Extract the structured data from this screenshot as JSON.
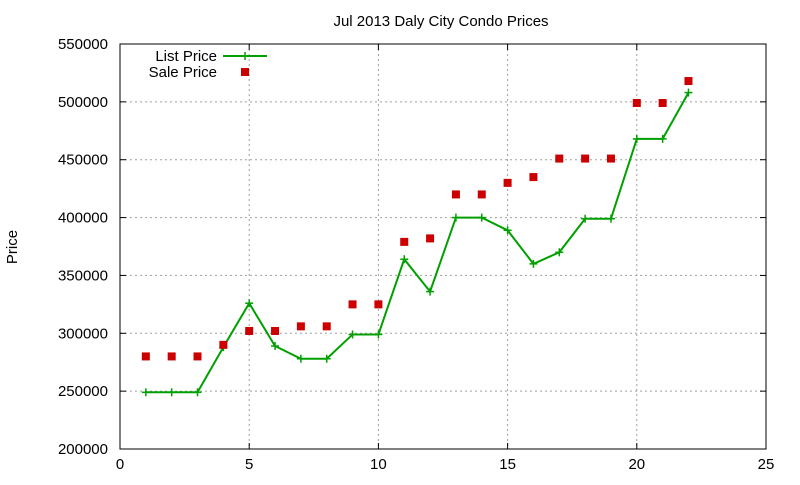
{
  "chart_data": {
    "type": "line",
    "title": "Jul 2013 Daly City Condo Prices",
    "xlabel": "",
    "ylabel": "Price",
    "xlim": [
      0,
      25
    ],
    "ylim": [
      200000,
      550000
    ],
    "x_ticks": [
      0,
      5,
      10,
      15,
      20,
      25
    ],
    "y_ticks": [
      200000,
      250000,
      300000,
      350000,
      400000,
      450000,
      500000,
      550000
    ],
    "grid": true,
    "legend_position": "top-left",
    "series": [
      {
        "name": "List Price",
        "style": "line-plus",
        "color": "#00a000",
        "x": [
          1,
          2,
          3,
          4,
          5,
          6,
          7,
          8,
          9,
          10,
          11,
          12,
          13,
          14,
          15,
          16,
          17,
          18,
          19,
          20,
          21,
          22
        ],
        "values": [
          249000,
          249000,
          249000,
          288000,
          326000,
          289000,
          278000,
          278000,
          299000,
          299000,
          364000,
          336000,
          400000,
          400000,
          389000,
          360000,
          370000,
          399000,
          399000,
          468000,
          468000,
          508000
        ]
      },
      {
        "name": "Sale Price",
        "style": "square-points",
        "color": "#cc0000",
        "x": [
          1,
          2,
          3,
          4,
          5,
          6,
          7,
          8,
          9,
          10,
          11,
          12,
          13,
          14,
          15,
          16,
          17,
          18,
          19,
          20,
          21,
          22
        ],
        "values": [
          280000,
          280000,
          280000,
          290000,
          302000,
          302000,
          306000,
          306000,
          325000,
          325000,
          379000,
          382000,
          420000,
          420000,
          430000,
          435000,
          451000,
          451000,
          451000,
          499000,
          499000,
          518000
        ]
      }
    ]
  }
}
